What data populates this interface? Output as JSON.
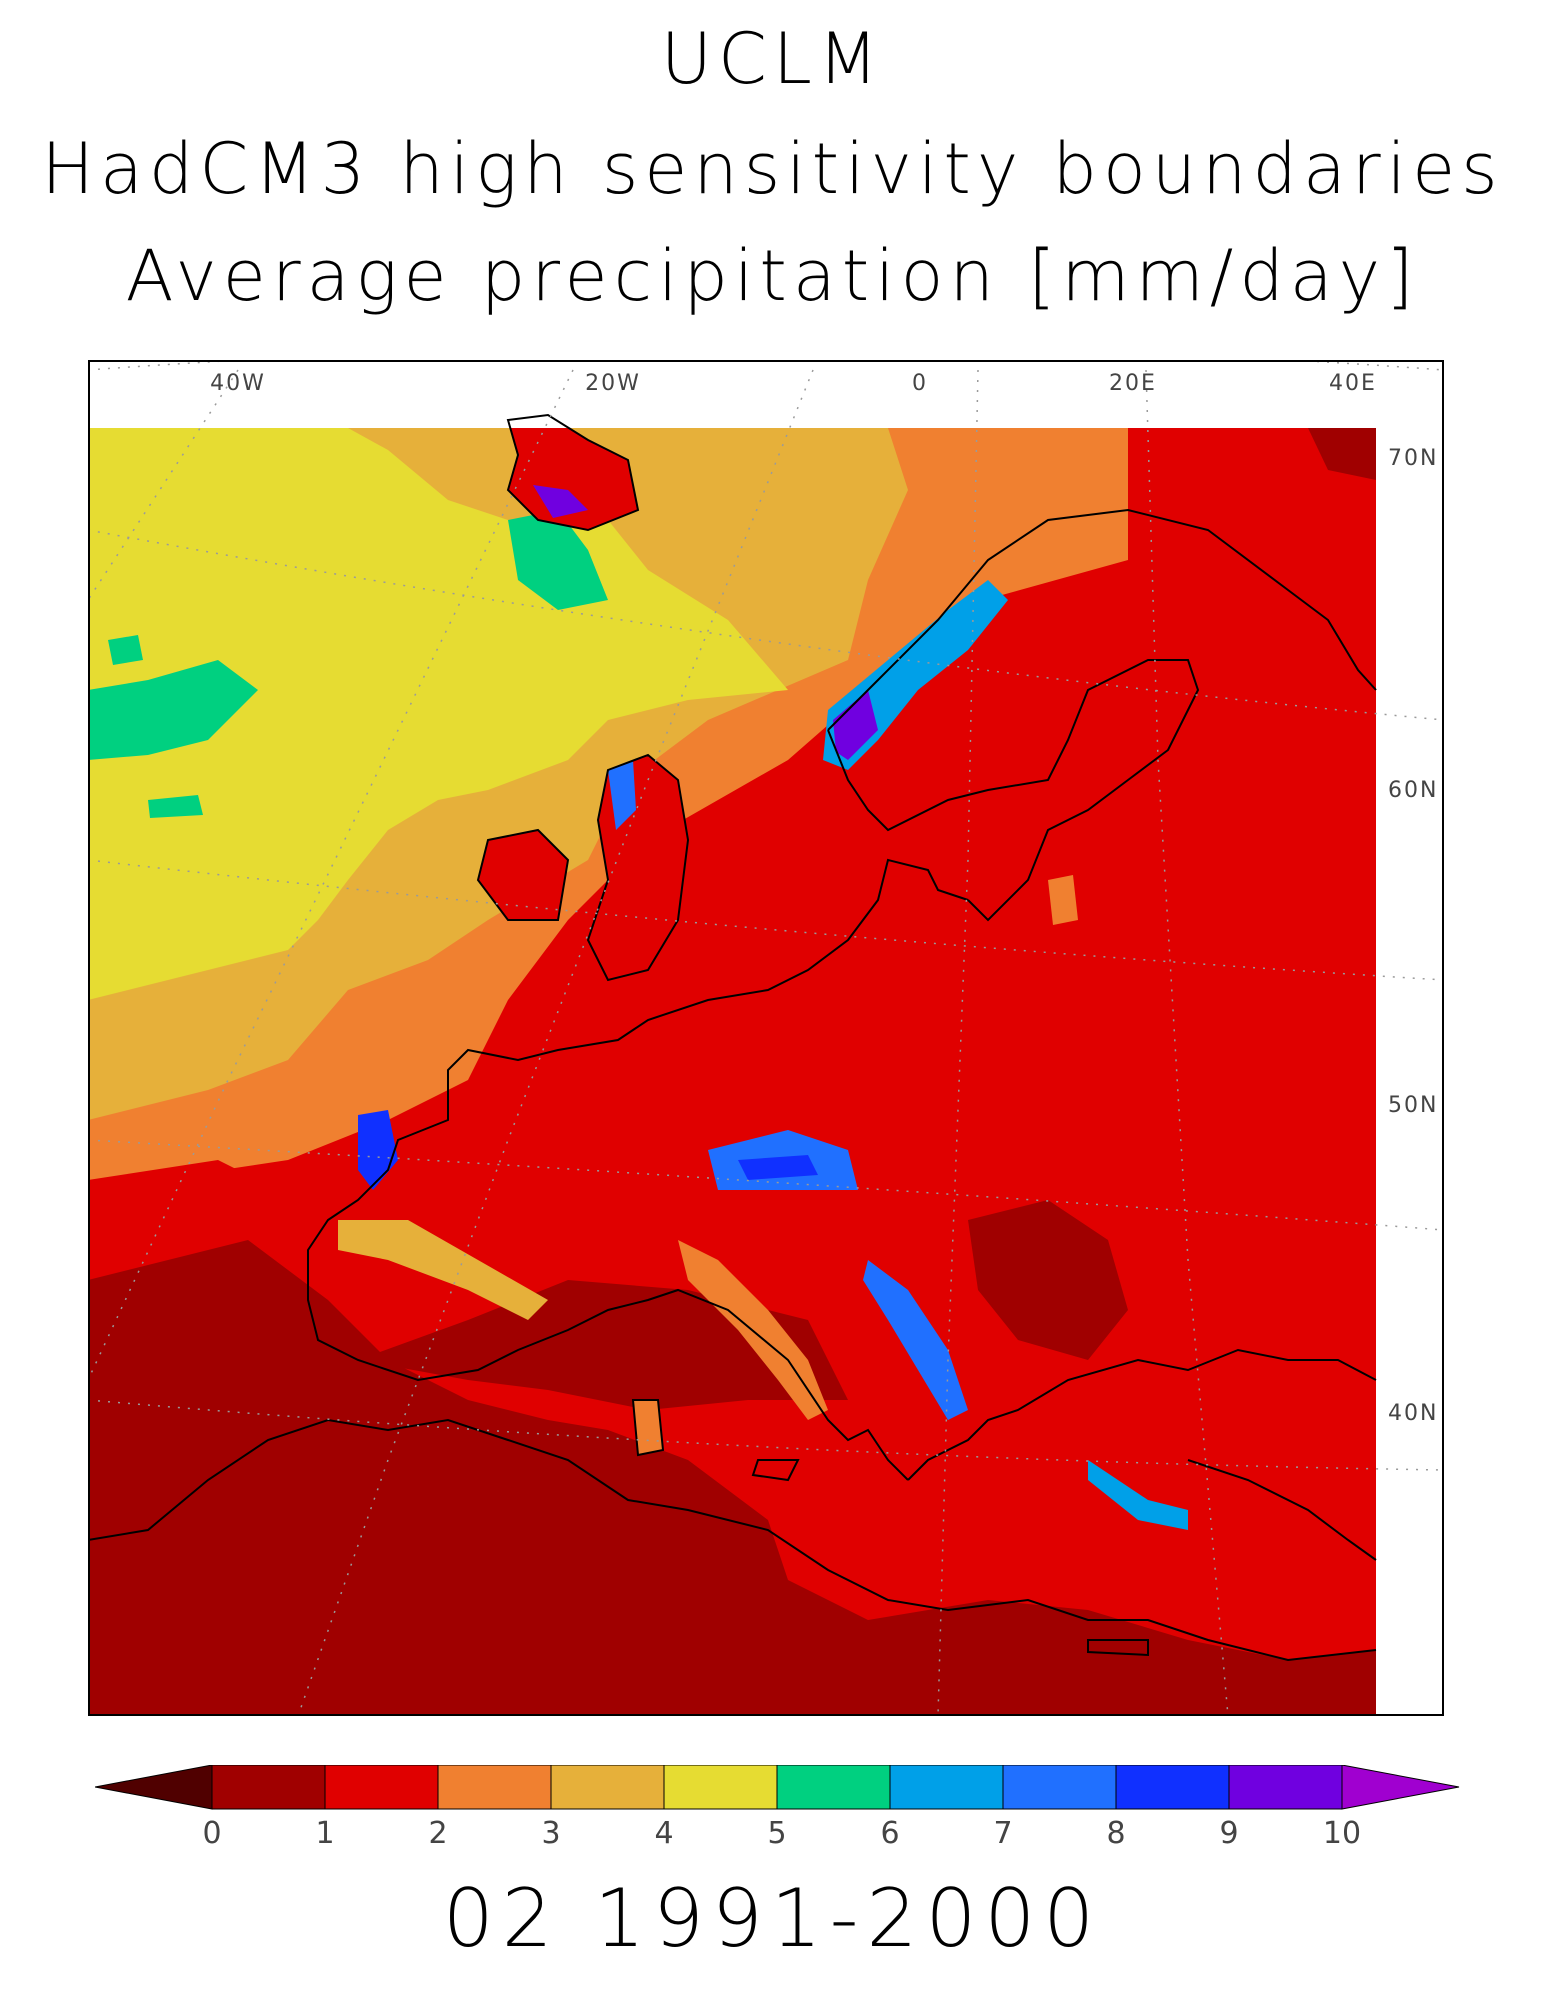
{
  "title": {
    "line1": "UCLM",
    "line2": "HadCM3 high sensitivity boundaries",
    "line3": "Average precipitation [mm/day]"
  },
  "map": {
    "lon_labels": [
      "40W",
      "20W",
      "0",
      "20E",
      "40E"
    ],
    "lat_labels": [
      "70N",
      "60N",
      "50N",
      "40N"
    ],
    "colors": {
      "0-1": "#a00000",
      "1-2": "#e00000",
      "2-3": "#f08030",
      "3-4": "#e6b03a",
      "4-5": "#e6dc32",
      "5-6": "#00d080",
      "6-7": "#00a0e8",
      "7-8": "#2070ff",
      "8-9": "#1030ff",
      "9-10": "#7000e0",
      "coast": "#000000",
      "grid": "#9a9a9a"
    }
  },
  "legend": {
    "ticks": [
      "0",
      "1",
      "2",
      "3",
      "4",
      "5",
      "6",
      "7",
      "8",
      "9",
      "10"
    ],
    "colors": [
      "#a00000",
      "#e00000",
      "#f08030",
      "#e6b03a",
      "#e6dc32",
      "#00d080",
      "#00a0e8",
      "#2070ff",
      "#1030ff",
      "#7000e0"
    ],
    "under_color": "#500000",
    "over_color": "#a000d0"
  },
  "period": "02 1991-2000"
}
